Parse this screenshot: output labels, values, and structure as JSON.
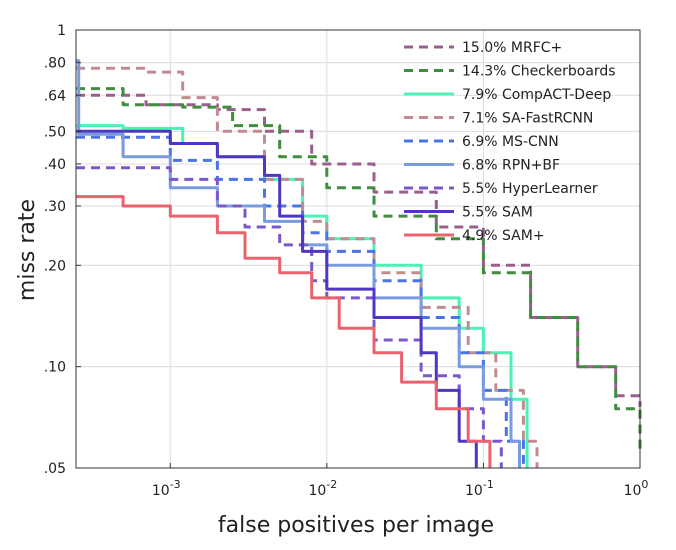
{
  "chart_data": {
    "type": "line",
    "title": "",
    "xlabel": "false positives per image",
    "ylabel": "miss rate",
    "x_scale": "log",
    "y_scale": "log",
    "xlim": [
      0.00025,
      1
    ],
    "ylim": [
      0.05,
      1
    ],
    "grid": true,
    "legend_position": "top-right",
    "x_ticks": [
      {
        "value": 0.001,
        "base": "10",
        "exp": "-3"
      },
      {
        "value": 0.01,
        "base": "10",
        "exp": "-2"
      },
      {
        "value": 0.1,
        "base": "10",
        "exp": "-1"
      },
      {
        "value": 1,
        "base": "10",
        "exp": "0"
      }
    ],
    "y_ticks": [
      {
        "value": 0.05,
        "label": ".05"
      },
      {
        "value": 0.1,
        "label": ".10"
      },
      {
        "value": 0.2,
        "label": ".20"
      },
      {
        "value": 0.3,
        "label": ".30"
      },
      {
        "value": 0.4,
        "label": ".40"
      },
      {
        "value": 0.5,
        "label": ".50"
      },
      {
        "value": 0.64,
        "label": ".64"
      },
      {
        "value": 0.8,
        "label": ".80"
      },
      {
        "value": 1,
        "label": "1"
      }
    ],
    "series": [
      {
        "name": "15.0% MRFC+",
        "color": "#9b5f8e",
        "dash": true,
        "width": 3,
        "points": [
          [
            0.00025,
            0.64
          ],
          [
            0.0007,
            0.6
          ],
          [
            0.002,
            0.58
          ],
          [
            0.004,
            0.5
          ],
          [
            0.008,
            0.4
          ],
          [
            0.02,
            0.33
          ],
          [
            0.05,
            0.26
          ],
          [
            0.1,
            0.2
          ],
          [
            0.2,
            0.14
          ],
          [
            0.4,
            0.1
          ],
          [
            0.7,
            0.082
          ],
          [
            1,
            0.076
          ]
        ]
      },
      {
        "name": "14.3% Checkerboards",
        "color": "#3e8e3e",
        "dash": true,
        "width": 3,
        "points": [
          [
            0.00025,
            0.67
          ],
          [
            0.0005,
            0.6
          ],
          [
            0.0012,
            0.59
          ],
          [
            0.0025,
            0.52
          ],
          [
            0.005,
            0.42
          ],
          [
            0.01,
            0.34
          ],
          [
            0.02,
            0.28
          ],
          [
            0.05,
            0.24
          ],
          [
            0.1,
            0.19
          ],
          [
            0.2,
            0.14
          ],
          [
            0.4,
            0.1
          ],
          [
            0.7,
            0.075
          ],
          [
            1,
            0.055
          ]
        ]
      },
      {
        "name": "7.9% CompACT-Deep",
        "color": "#4af2b3",
        "dash": false,
        "width": 3,
        "points": [
          [
            0.00025,
            0.52
          ],
          [
            0.0005,
            0.51
          ],
          [
            0.0012,
            0.46
          ],
          [
            0.002,
            0.42
          ],
          [
            0.004,
            0.36
          ],
          [
            0.007,
            0.28
          ],
          [
            0.01,
            0.24
          ],
          [
            0.02,
            0.2
          ],
          [
            0.04,
            0.16
          ],
          [
            0.07,
            0.13
          ],
          [
            0.1,
            0.11
          ],
          [
            0.15,
            0.08
          ],
          [
            0.19,
            0.05
          ]
        ]
      },
      {
        "name": "7.1% SA-FastRCNN",
        "color": "#c08c92",
        "dash": true,
        "width": 3,
        "points": [
          [
            0.00025,
            0.77
          ],
          [
            0.0007,
            0.75
          ],
          [
            0.0012,
            0.63
          ],
          [
            0.002,
            0.5
          ],
          [
            0.004,
            0.36
          ],
          [
            0.007,
            0.27
          ],
          [
            0.01,
            0.24
          ],
          [
            0.02,
            0.19
          ],
          [
            0.04,
            0.15
          ],
          [
            0.08,
            0.11
          ],
          [
            0.12,
            0.085
          ],
          [
            0.18,
            0.06
          ],
          [
            0.22,
            0.05
          ]
        ]
      },
      {
        "name": "6.9% MS-CNN",
        "color": "#4a74e6",
        "dash": true,
        "width": 3,
        "points": [
          [
            0.00025,
            0.48
          ],
          [
            0.0005,
            0.48
          ],
          [
            0.001,
            0.41
          ],
          [
            0.002,
            0.36
          ],
          [
            0.004,
            0.3
          ],
          [
            0.007,
            0.25
          ],
          [
            0.01,
            0.22
          ],
          [
            0.02,
            0.18
          ],
          [
            0.04,
            0.14
          ],
          [
            0.07,
            0.11
          ],
          [
            0.1,
            0.085
          ],
          [
            0.14,
            0.06
          ],
          [
            0.18,
            0.05
          ]
        ]
      },
      {
        "name": "6.8% RPN+BF",
        "color": "#7a9be0",
        "dash": false,
        "width": 3,
        "points": [
          [
            0.00025,
            0.81
          ],
          [
            0.00026,
            0.49
          ],
          [
            0.0005,
            0.49
          ],
          [
            0.0005,
            0.42
          ],
          [
            0.001,
            0.34
          ],
          [
            0.002,
            0.3
          ],
          [
            0.004,
            0.27
          ],
          [
            0.007,
            0.23
          ],
          [
            0.01,
            0.2
          ],
          [
            0.02,
            0.16
          ],
          [
            0.04,
            0.13
          ],
          [
            0.07,
            0.1
          ],
          [
            0.1,
            0.08
          ],
          [
            0.15,
            0.06
          ],
          [
            0.17,
            0.05
          ]
        ]
      },
      {
        "name": "5.5% HyperLearner",
        "color": "#7b57cc",
        "dash": true,
        "width": 3,
        "points": [
          [
            0.00025,
            0.39
          ],
          [
            0.0005,
            0.39
          ],
          [
            0.001,
            0.36
          ],
          [
            0.002,
            0.3
          ],
          [
            0.003,
            0.26
          ],
          [
            0.005,
            0.23
          ],
          [
            0.008,
            0.18
          ],
          [
            0.01,
            0.16
          ],
          [
            0.02,
            0.12
          ],
          [
            0.04,
            0.094
          ],
          [
            0.07,
            0.075
          ],
          [
            0.1,
            0.06
          ],
          [
            0.13,
            0.05
          ]
        ]
      },
      {
        "name": "5.5% SAM",
        "color": "#5036c2",
        "dash": false,
        "width": 3,
        "points": [
          [
            0.00025,
            0.5
          ],
          [
            0.0005,
            0.5
          ],
          [
            0.001,
            0.46
          ],
          [
            0.002,
            0.42
          ],
          [
            0.004,
            0.37
          ],
          [
            0.005,
            0.28
          ],
          [
            0.007,
            0.22
          ],
          [
            0.01,
            0.17
          ],
          [
            0.02,
            0.14
          ],
          [
            0.04,
            0.11
          ],
          [
            0.05,
            0.085
          ],
          [
            0.07,
            0.06
          ],
          [
            0.09,
            0.05
          ]
        ]
      },
      {
        "name": "4.9% SAM+",
        "color": "#e8636d",
        "dash": false,
        "width": 3,
        "points": [
          [
            0.00025,
            0.32
          ],
          [
            0.0005,
            0.3
          ],
          [
            0.001,
            0.28
          ],
          [
            0.002,
            0.25
          ],
          [
            0.003,
            0.21
          ],
          [
            0.005,
            0.19
          ],
          [
            0.008,
            0.16
          ],
          [
            0.012,
            0.13
          ],
          [
            0.02,
            0.11
          ],
          [
            0.03,
            0.09
          ],
          [
            0.05,
            0.075
          ],
          [
            0.08,
            0.06
          ],
          [
            0.11,
            0.05
          ]
        ]
      }
    ]
  }
}
